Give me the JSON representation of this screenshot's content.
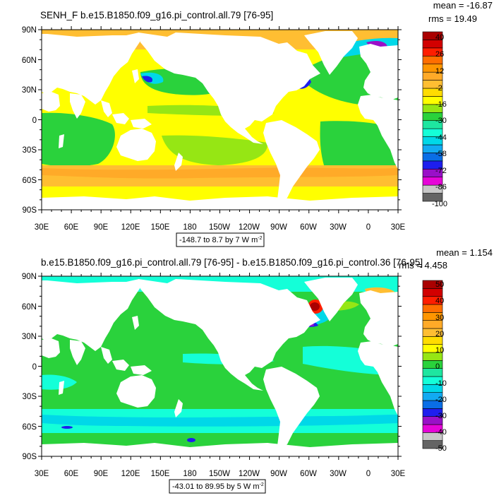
{
  "colors": {
    "top_scale": [
      "#646464",
      "#c8c8c8",
      "#e605d8",
      "#9a10c8",
      "#1e1eee",
      "#0a6ee6",
      "#12aaf2",
      "#00d8e8",
      "#14ffd8",
      "#1ee6a0",
      "#2ad23c",
      "#96e614",
      "#ffff00",
      "#ffdc00",
      "#ffbe32",
      "#ffaa28",
      "#ff9600",
      "#ff6e00",
      "#ff1e00",
      "#d20000",
      "#aa0000"
    ],
    "bottom_scale": [
      "#646464",
      "#c8c8c8",
      "#e605d8",
      "#9a10c8",
      "#1e1eee",
      "#0a6ee6",
      "#12aaf2",
      "#00d8e8",
      "#14ffd8",
      "#1ee6a0",
      "#2ad23c",
      "#96e614",
      "#ffff00",
      "#ffdc00",
      "#ffbe32",
      "#ffaa28",
      "#ff9600",
      "#ff6e00",
      "#ff1e00",
      "#d20000",
      "#aa0000"
    ]
  },
  "lat_labels": [
    "90N",
    "60N",
    "30N",
    "0",
    "30S",
    "60S",
    "90S"
  ],
  "lon_labels": [
    "30E",
    "60E",
    "90E",
    "120E",
    "150E",
    "180",
    "150W",
    "120W",
    "90W",
    "60W",
    "30W",
    "0",
    "30E"
  ],
  "panels": [
    {
      "title": "SENH_F b.e15.B1850.f09_g16.pi_control.all.79 [76-95]",
      "mean_text": "mean = -16.87",
      "rms_text": "rms = 19.49",
      "range_prefix": "-148.7 to 8.7 by 7  W m",
      "range_sup": "-2",
      "colorbar_labels": [
        "40",
        "26",
        "12",
        "-2",
        "-16",
        "-30",
        "-44",
        "-58",
        "-72",
        "-86",
        "-100"
      ]
    },
    {
      "title": "b.e15.B1850.f09_g16.pi_control.all.79 [76-95] - b.e15.B1850.f09_g16.pi_control.36 [76-95]",
      "mean_text": "mean = 1.154",
      "rms_text": "rms = 4.458",
      "range_prefix": "-43.01 to 89.95 by 5  W m",
      "range_sup": "-2",
      "colorbar_labels": [
        "50",
        "40",
        "30",
        "20",
        "10",
        "0",
        "-10",
        "-20",
        "-30",
        "-40",
        "-50"
      ]
    }
  ]
}
